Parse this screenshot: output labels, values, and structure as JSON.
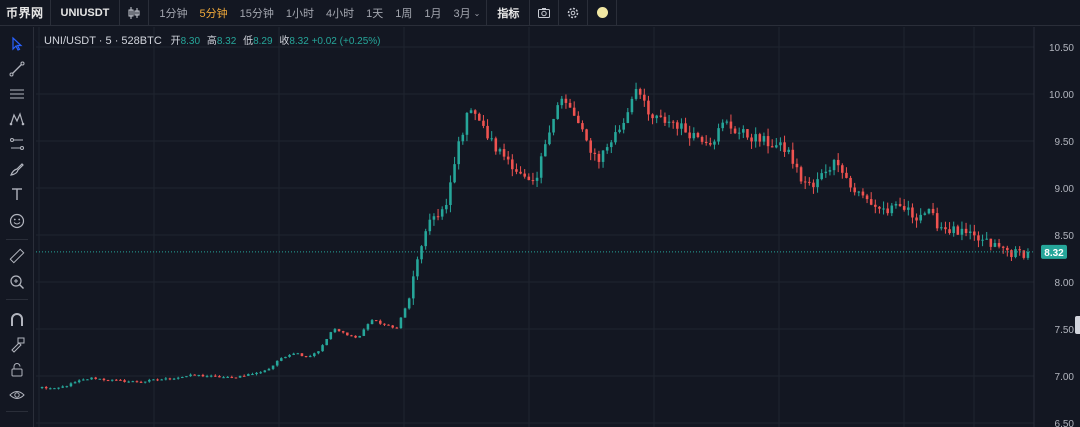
{
  "app": {
    "brand": "币界网"
  },
  "toolbar_top": {
    "symbol": "UNIUSDT",
    "intervals": [
      {
        "label": "1分钟",
        "active": false
      },
      {
        "label": "5分钟",
        "active": true
      },
      {
        "label": "15分钟",
        "active": false
      },
      {
        "label": "1小时",
        "active": false
      },
      {
        "label": "4小时",
        "active": false
      },
      {
        "label": "1天",
        "active": false
      },
      {
        "label": "1周",
        "active": false
      },
      {
        "label": "1月",
        "active": false
      },
      {
        "label": "3月",
        "active": false,
        "dropdown": true
      }
    ],
    "indicators_label": "指标",
    "icons": [
      "chart-type-icon",
      "camera-icon",
      "settings-icon",
      "theme-moon-icon"
    ]
  },
  "left_tools": [
    "cursor-icon",
    "trend-line-icon",
    "horizontal-lines-icon",
    "pattern-icon",
    "fib-icon",
    "brush-icon",
    "text-icon",
    "emoji-icon",
    "ruler-icon",
    "zoom-icon",
    "magnet-icon",
    "lock-drawing-icon",
    "lock-icon",
    "eye-icon"
  ],
  "legend": {
    "title": "UNI/USDT · 5 · 528BTC",
    "open_label": "开",
    "open": "8.30",
    "high_label": "高",
    "high": "8.32",
    "low_label": "低",
    "low": "8.29",
    "close_label": "收",
    "close": "8.32",
    "change": "+0.02",
    "change_pct": "(+0.25%)"
  },
  "colors": {
    "background": "#131722",
    "up": "#26a69a",
    "down": "#ef5350",
    "grid": "#1f2430",
    "axis_text": "#b2b5be",
    "active_interval": "#f0a93a"
  },
  "chart_data": {
    "type": "candlestick",
    "title": "UNI/USDT · 5 · 528BTC",
    "interval": "5分钟",
    "ylim": [
      6.5,
      10.6
    ],
    "y_ticks": [
      {
        "value": 10.5,
        "label": "10.50"
      },
      {
        "value": 10.0,
        "label": "10.00"
      },
      {
        "value": 9.5,
        "label": "9.50"
      },
      {
        "value": 9.0,
        "label": "9.00"
      },
      {
        "value": 8.5,
        "label": "8.50"
      },
      {
        "value": 8.0,
        "label": "8.00"
      },
      {
        "value": 7.5,
        "label": "7.50"
      },
      {
        "value": 7.0,
        "label": "7.00"
      },
      {
        "value": 6.5,
        "label": "6.50"
      }
    ],
    "last_price": 8.32,
    "last_price_label": "8.32",
    "grid": true,
    "anchor_closes": [
      6.88,
      6.86,
      6.9,
      6.95,
      6.98,
      6.96,
      6.95,
      6.94,
      6.94,
      6.96,
      6.97,
      6.99,
      7.01,
      7.0,
      6.99,
      6.98,
      7.01,
      7.03,
      7.08,
      7.2,
      7.25,
      7.2,
      7.28,
      7.5,
      7.45,
      7.4,
      7.6,
      7.55,
      7.5,
      7.8,
      8.4,
      8.7,
      8.8,
      9.5,
      9.9,
      9.6,
      9.4,
      9.3,
      9.1,
      9.0,
      9.6,
      9.95,
      9.8,
      9.5,
      9.3,
      9.5,
      9.7,
      10.1,
      9.75,
      9.72,
      9.7,
      9.6,
      9.55,
      9.5,
      9.7,
      9.6,
      9.55,
      9.5,
      9.45,
      9.4,
      9.1,
      9.0,
      9.2,
      9.3,
      9.0,
      8.9,
      8.8,
      8.75,
      8.8,
      8.7,
      8.75,
      8.6,
      8.55,
      8.5,
      8.45,
      8.4,
      8.35,
      8.3,
      8.32
    ]
  }
}
